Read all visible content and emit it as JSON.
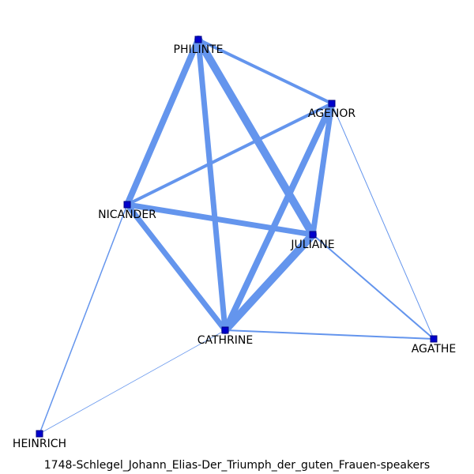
{
  "caption": "1748-Schlegel_Johann_Elias-Der_Triumph_der_guten_Frauen-speakers",
  "colors": {
    "edge": "#6495ED",
    "node_fill": "#0000CD",
    "label": "#000000",
    "background": "#FFFFFF"
  },
  "nodes": [
    {
      "id": "PHILINTE",
      "label": "PHILINTE"
    },
    {
      "id": "AGENOR",
      "label": "AGENOR"
    },
    {
      "id": "NICANDER",
      "label": "NICANDER"
    },
    {
      "id": "JULIANE",
      "label": "JULIANE"
    },
    {
      "id": "CATHRINE",
      "label": "CATHRINE"
    },
    {
      "id": "AGATHE",
      "label": "AGATHE"
    },
    {
      "id": "HEINRICH",
      "label": "HEINRICH"
    }
  ],
  "edges": [
    {
      "source": "PHILINTE",
      "target": "JULIANE",
      "weight": 10
    },
    {
      "source": "PHILINTE",
      "target": "NICANDER",
      "weight": 8
    },
    {
      "source": "PHILINTE",
      "target": "CATHRINE",
      "weight": 7
    },
    {
      "source": "PHILINTE",
      "target": "AGENOR",
      "weight": 4
    },
    {
      "source": "AGENOR",
      "target": "NICANDER",
      "weight": 4
    },
    {
      "source": "AGENOR",
      "target": "JULIANE",
      "weight": 7
    },
    {
      "source": "AGENOR",
      "target": "CATHRINE",
      "weight": 8
    },
    {
      "source": "AGENOR",
      "target": "AGATHE",
      "weight": 1
    },
    {
      "source": "NICANDER",
      "target": "JULIANE",
      "weight": 7
    },
    {
      "source": "NICANDER",
      "target": "CATHRINE",
      "weight": 7
    },
    {
      "source": "NICANDER",
      "target": "HEINRICH",
      "weight": 1.5
    },
    {
      "source": "JULIANE",
      "target": "CATHRINE",
      "weight": 10
    },
    {
      "source": "JULIANE",
      "target": "AGATHE",
      "weight": 2
    },
    {
      "source": "CATHRINE",
      "target": "AGATHE",
      "weight": 2
    },
    {
      "source": "CATHRINE",
      "target": "HEINRICH",
      "weight": 0.8
    }
  ]
}
